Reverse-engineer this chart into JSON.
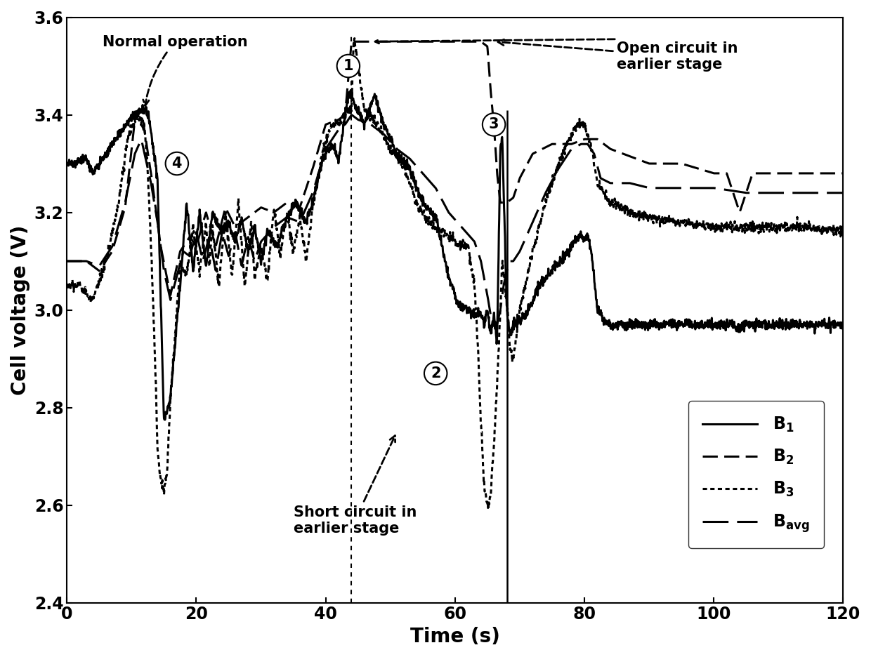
{
  "xlabel": "Time (s)",
  "ylabel": "Cell voltage (V)",
  "xlim": [
    0,
    120
  ],
  "ylim": [
    2.4,
    3.6
  ],
  "xticks": [
    0,
    20,
    40,
    60,
    80,
    100,
    120
  ],
  "yticks": [
    2.4,
    2.6,
    2.8,
    3.0,
    3.2,
    3.4,
    3.6
  ],
  "figsize": [
    12.4,
    9.36
  ],
  "dpi": 100
}
